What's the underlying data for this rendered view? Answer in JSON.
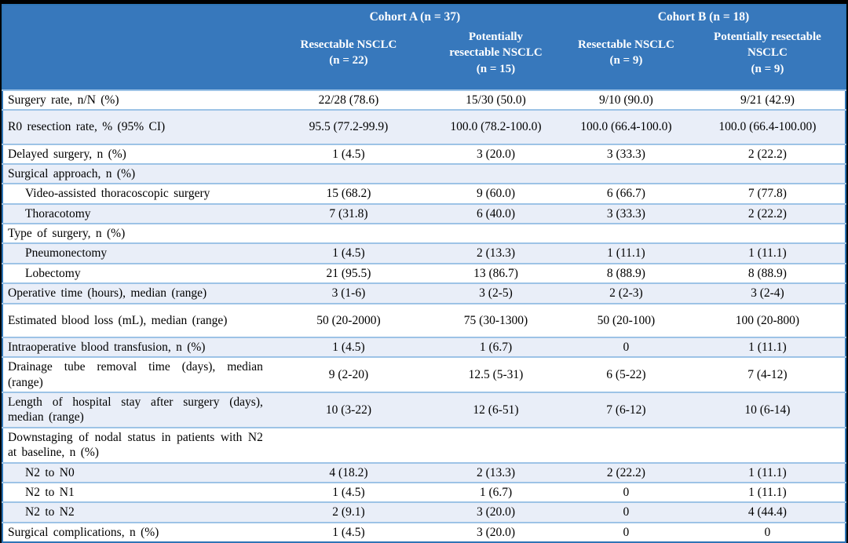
{
  "colors": {
    "header_blue": "#3778BC",
    "row_alt_blue": "#E9EEF8",
    "separator_blue": "#9DC3E6",
    "outer_border_blue": "#2E75B6",
    "frame_black": "#000000"
  },
  "table": {
    "header": {
      "groups": [
        {
          "label": "Cohort A (n = 37)"
        },
        {
          "label": "Cohort B (n = 18)"
        }
      ],
      "sub_cols": [
        "Resectable NSCLC\n(n = 22)",
        "Potentially\nresectable NSCLC\n(n = 15)",
        "Resectable NSCLC\n(n = 9)",
        "Potentially resectable\nNSCLC\n(n = 9)"
      ]
    },
    "rows": [
      {
        "label": "Surgery rate, n/N (%)",
        "values": [
          "22/28 (78.6)",
          "15/30 (50.0)",
          "9/10 (90.0)",
          "9/21 (42.9)"
        ]
      },
      {
        "label": "R0 resection rate, % (95% CI)",
        "values": [
          "95.5 (77.2-99.9)",
          "100.0 (78.2-100.0)",
          "100.0 (66.4-100.0)",
          "100.0 (66.4-100.00)"
        ],
        "tall": true
      },
      {
        "label": "Delayed surgery, n (%)",
        "values": [
          "1 (4.5)",
          "3 (20.0)",
          "3 (33.3)",
          "2 (22.2)"
        ]
      },
      {
        "label": "Surgical approach, n (%)",
        "values": [
          "",
          "",
          "",
          ""
        ],
        "section": true
      },
      {
        "label": "Video-assisted thoracoscopic surgery",
        "values": [
          "15 (68.2)",
          "9 (60.0)",
          "6 (66.7)",
          "7 (77.8)"
        ],
        "indent": true
      },
      {
        "label": "Thoracotomy",
        "values": [
          "7 (31.8)",
          "6 (40.0)",
          "3 (33.3)",
          "2 (22.2)"
        ],
        "indent": true
      },
      {
        "label": "Type of surgery, n (%)",
        "values": [
          "",
          "",
          "",
          ""
        ],
        "section": true
      },
      {
        "label": "Pneumonectomy",
        "values": [
          "1 (4.5)",
          "2 (13.3)",
          "1 (11.1)",
          "1 (11.1)"
        ],
        "indent": true
      },
      {
        "label": "Lobectomy",
        "values": [
          "21 (95.5)",
          "13 (86.7)",
          "8 (88.9)",
          "8 (88.9)"
        ],
        "indent": true
      },
      {
        "label": "Operative time (hours), median (range)",
        "values": [
          "3 (1-6)",
          "3 (2-5)",
          "2 (2-3)",
          "3 (2-4)"
        ]
      },
      {
        "label": "Estimated blood loss (mL), median (range)",
        "values": [
          "50 (20-2000)",
          "75 (30-1300)",
          "50 (20-100)",
          "100 (20-800)"
        ],
        "tall": true
      },
      {
        "label": "Intraoperative blood transfusion, n (%)",
        "values": [
          "1 (4.5)",
          "1 (6.7)",
          "0",
          "1 (11.1)"
        ]
      },
      {
        "label": "Drainage tube removal time (days), median (range)",
        "values": [
          "9 (2-20)",
          "12.5 (5-31)",
          "6 (5-22)",
          "7 (4-12)"
        ]
      },
      {
        "label": "Length of hospital stay after surgery (days), median (range)",
        "values": [
          "10 (3-22)",
          "12 (6-51)",
          "7 (6-12)",
          "10 (6-14)"
        ]
      },
      {
        "label": "Downstaging of nodal status in patients with N2 at baseline, n (%)",
        "values": [
          "",
          "",
          "",
          ""
        ],
        "section": true
      },
      {
        "label": "N2 to N0",
        "values": [
          "4 (18.2)",
          "2 (13.3)",
          "2 (22.2)",
          "1 (11.1)"
        ],
        "indent": true
      },
      {
        "label": "N2 to N1",
        "values": [
          "1 (4.5)",
          "1 (6.7)",
          "0",
          "1 (11.1)"
        ],
        "indent": true
      },
      {
        "label": "N2 to N2",
        "values": [
          "2 (9.1)",
          "3 (20.0)",
          "0",
          "4 (44.4)"
        ],
        "indent": true
      },
      {
        "label": "Surgical complications, n (%)",
        "values": [
          "1 (4.5)",
          "3 (20.0)",
          "0",
          "0"
        ]
      }
    ]
  }
}
